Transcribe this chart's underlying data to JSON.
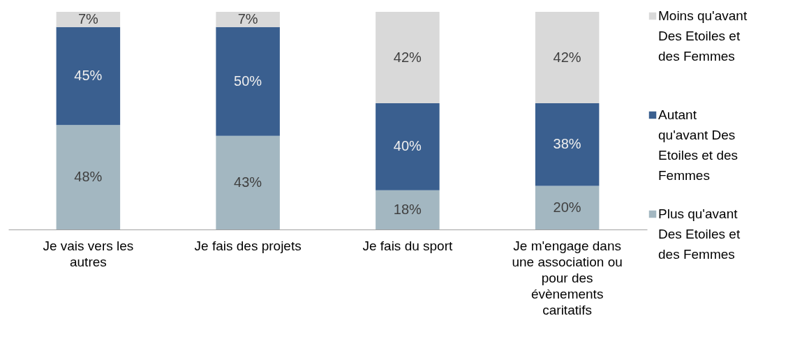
{
  "chart_data": {
    "type": "bar",
    "stacked": true,
    "categories": [
      "Je vais vers les autres",
      "Je fais des projets",
      "Je fais du sport",
      "Je m'engage dans une association ou pour des évènements caritatifs"
    ],
    "ylim": [
      0,
      100
    ],
    "tick_labels": "x",
    "grid": false,
    "legend": "right",
    "series": [
      {
        "name": "Plus qu'avant Des Etoiles et des Femmes",
        "color": "#a3b7c1",
        "values": [
          48,
          43,
          18,
          20
        ],
        "value_labels": [
          "48%",
          "43%",
          "18%",
          "20%"
        ]
      },
      {
        "name": "Autant qu'avant Des Etoiles et des Femmes",
        "color": "#3a5f8f",
        "values": [
          45,
          50,
          40,
          38
        ],
        "value_labels": [
          "45%",
          "50%",
          "40%",
          "38%"
        ]
      },
      {
        "name": "Moins qu'avant Des Etoiles et des Femmes",
        "color": "#d9d9d9",
        "values": [
          7,
          7,
          42,
          42
        ],
        "value_labels": [
          "7%",
          "7%",
          "42%",
          "42%"
        ]
      }
    ]
  }
}
